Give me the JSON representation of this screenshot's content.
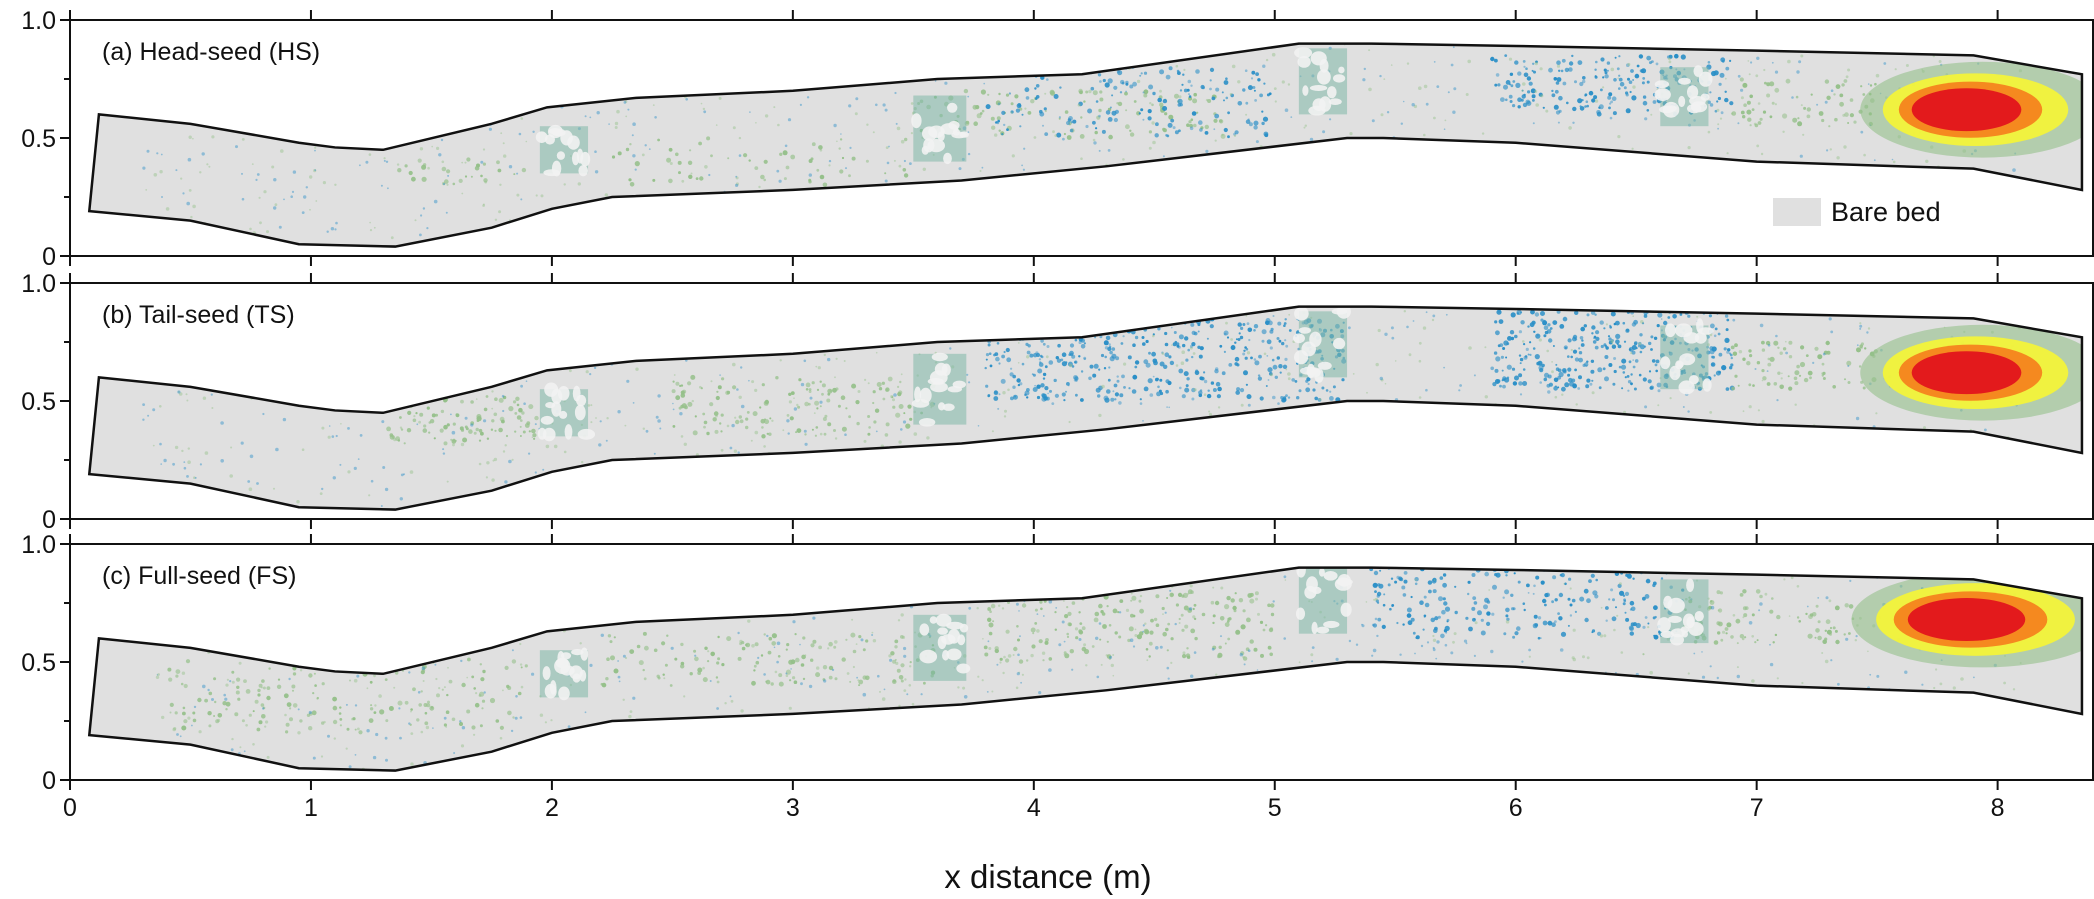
{
  "chart_data": {
    "type": "heatmap",
    "xlabel": "x distance (m)",
    "xlim": [
      0,
      8.4
    ],
    "ylim": [
      0,
      1.0
    ],
    "x_ticks": [
      "0",
      "1",
      "2",
      "3",
      "4",
      "5",
      "6",
      "7",
      "8"
    ],
    "y_ticks": [
      "0",
      "0.5",
      "1.0"
    ],
    "legend": {
      "entries": [
        {
          "label": "Bare bed",
          "color": "#e0e0e0"
        }
      ],
      "placement": "bottom-right of panel (a)"
    },
    "colors": {
      "bare_bed": "#e0e0e0",
      "blue": "#2a8fc7",
      "green": "#95c08a",
      "yellow": "#f3f33a",
      "orange": "#f5891f",
      "red": "#e31a1c",
      "frame": "#111111"
    },
    "channel": {
      "upper_bank": [
        [
          0.12,
          0.6
        ],
        [
          0.5,
          0.56
        ],
        [
          0.95,
          0.48
        ],
        [
          1.1,
          0.46
        ],
        [
          1.3,
          0.45
        ],
        [
          1.75,
          0.56
        ],
        [
          1.98,
          0.63
        ],
        [
          2.35,
          0.67
        ],
        [
          3.0,
          0.7
        ],
        [
          3.6,
          0.75
        ],
        [
          4.2,
          0.77
        ],
        [
          5.1,
          0.9
        ],
        [
          5.4,
          0.9
        ],
        [
          6.0,
          0.89
        ],
        [
          7.0,
          0.87
        ],
        [
          7.9,
          0.85
        ],
        [
          8.35,
          0.77
        ]
      ],
      "lower_bank": [
        [
          0.08,
          0.19
        ],
        [
          0.5,
          0.15
        ],
        [
          0.95,
          0.05
        ],
        [
          1.35,
          0.04
        ],
        [
          1.75,
          0.12
        ],
        [
          2.0,
          0.2
        ],
        [
          2.25,
          0.25
        ],
        [
          3.0,
          0.28
        ],
        [
          3.7,
          0.32
        ],
        [
          4.3,
          0.38
        ],
        [
          5.3,
          0.5
        ],
        [
          5.45,
          0.5
        ],
        [
          6.0,
          0.48
        ],
        [
          7.0,
          0.4
        ],
        [
          7.9,
          0.37
        ],
        [
          8.35,
          0.28
        ]
      ]
    },
    "panels": [
      {
        "label": "(a) Head-seed (HS)",
        "hotspot": {
          "x": 7.9,
          "y": 0.62,
          "extent_x": 0.7,
          "extent_y": 0.14
        },
        "zones": [
          {
            "color": "green",
            "x": [
              1.3,
              1.9
            ],
            "y": [
              0.3,
              0.42
            ],
            "density": 0.25
          },
          {
            "color": "green",
            "x": [
              2.2,
              3.5
            ],
            "y": [
              0.3,
              0.5
            ],
            "density": 0.15
          },
          {
            "color": "green",
            "x": [
              3.5,
              4.8
            ],
            "y": [
              0.5,
              0.7
            ],
            "density": 0.3
          },
          {
            "color": "blue",
            "x": [
              3.8,
              5.0
            ],
            "y": [
              0.5,
              0.8
            ],
            "density": 0.3
          },
          {
            "color": "blue",
            "x": [
              5.9,
              6.9
            ],
            "y": [
              0.6,
              0.85
            ],
            "density": 0.55
          },
          {
            "color": "green",
            "x": [
              6.9,
              7.5
            ],
            "y": [
              0.55,
              0.75
            ],
            "density": 0.35
          }
        ],
        "patches": [
          {
            "x": [
              1.95,
              2.15
            ],
            "y": [
              0.35,
              0.55
            ]
          },
          {
            "x": [
              3.5,
              3.72
            ],
            "y": [
              0.4,
              0.68
            ]
          },
          {
            "x": [
              5.1,
              5.3
            ],
            "y": [
              0.6,
              0.88
            ]
          },
          {
            "x": [
              6.6,
              6.8
            ],
            "y": [
              0.55,
              0.8
            ]
          }
        ]
      },
      {
        "label": "(b) Tail-seed (TS)",
        "hotspot": {
          "x": 7.9,
          "y": 0.62,
          "extent_x": 0.7,
          "extent_y": 0.14
        },
        "zones": [
          {
            "color": "green",
            "x": [
              1.3,
              1.95
            ],
            "y": [
              0.32,
              0.52
            ],
            "density": 0.55
          },
          {
            "color": "green",
            "x": [
              2.5,
              3.6
            ],
            "y": [
              0.35,
              0.6
            ],
            "density": 0.35
          },
          {
            "color": "blue",
            "x": [
              3.8,
              5.3
            ],
            "y": [
              0.5,
              0.85
            ],
            "density": 0.55
          },
          {
            "color": "blue",
            "x": [
              5.9,
              6.9
            ],
            "y": [
              0.55,
              0.88
            ],
            "density": 0.7
          },
          {
            "color": "green",
            "x": [
              6.9,
              7.5
            ],
            "y": [
              0.55,
              0.75
            ],
            "density": 0.4
          }
        ],
        "patches": [
          {
            "x": [
              1.95,
              2.15
            ],
            "y": [
              0.35,
              0.55
            ]
          },
          {
            "x": [
              3.5,
              3.72
            ],
            "y": [
              0.4,
              0.7
            ]
          },
          {
            "x": [
              5.1,
              5.3
            ],
            "y": [
              0.6,
              0.88
            ]
          },
          {
            "x": [
              6.6,
              6.8
            ],
            "y": [
              0.55,
              0.82
            ]
          }
        ]
      },
      {
        "label": "(c) Full-seed (FS)",
        "hotspot": {
          "x": 7.9,
          "y": 0.68,
          "extent_x": 0.75,
          "extent_y": 0.14
        },
        "zones": [
          {
            "color": "green",
            "x": [
              0.4,
              1.9
            ],
            "y": [
              0.2,
              0.52
            ],
            "density": 0.25
          },
          {
            "color": "green",
            "x": [
              2.2,
              3.6
            ],
            "y": [
              0.4,
              0.62
            ],
            "density": 0.3
          },
          {
            "color": "green",
            "x": [
              3.8,
              5.0
            ],
            "y": [
              0.5,
              0.8
            ],
            "density": 0.35
          },
          {
            "color": "blue",
            "x": [
              5.4,
              6.7
            ],
            "y": [
              0.6,
              0.9
            ],
            "density": 0.4
          },
          {
            "color": "green",
            "x": [
              6.7,
              7.4
            ],
            "y": [
              0.58,
              0.8
            ],
            "density": 0.35
          }
        ],
        "patches": [
          {
            "x": [
              1.95,
              2.15
            ],
            "y": [
              0.35,
              0.55
            ]
          },
          {
            "x": [
              3.5,
              3.72
            ],
            "y": [
              0.42,
              0.7
            ]
          },
          {
            "x": [
              5.1,
              5.3
            ],
            "y": [
              0.62,
              0.9
            ]
          },
          {
            "x": [
              6.6,
              6.8
            ],
            "y": [
              0.58,
              0.85
            ]
          }
        ]
      }
    ]
  }
}
